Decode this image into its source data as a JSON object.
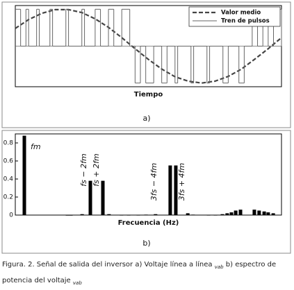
{
  "chart_data": [
    {
      "type": "line",
      "xlabel": "Tiempo",
      "xlim": [
        0,
        1
      ],
      "ylim": [
        -1.1,
        1.1
      ],
      "legend": "upper right",
      "series": [
        {
          "name": "Valor medio",
          "color": "#444444",
          "style": "dashed",
          "x": [
            0,
            0.05,
            0.1,
            0.15,
            0.2,
            0.25,
            0.3,
            0.35,
            0.4,
            0.45,
            0.5,
            0.55,
            0.6,
            0.65,
            0.7,
            0.75,
            0.8,
            0.85,
            0.9,
            0.95,
            1
          ],
          "values": [
            0.48,
            0.72,
            0.89,
            0.99,
            0.99,
            0.91,
            0.74,
            0.51,
            0.23,
            -0.07,
            -0.36,
            -0.62,
            -0.83,
            -0.95,
            -1.0,
            -0.95,
            -0.82,
            -0.62,
            -0.35,
            -0.07,
            0.23
          ]
        },
        {
          "name": "Tren de pulsos",
          "color": "#666666",
          "style": "step",
          "x": [
            0,
            0.02,
            0.04,
            0.05,
            0.08,
            0.09,
            0.13,
            0.14,
            0.19,
            0.2,
            0.25,
            0.26,
            0.3,
            0.32,
            0.35,
            0.37,
            0.4,
            0.43,
            0.45,
            0.47,
            0.49,
            0.52,
            0.55,
            0.57,
            0.6,
            0.61,
            0.66,
            0.67,
            0.72,
            0.73,
            0.78,
            0.8,
            0.84,
            0.86,
            0.89,
            0.91,
            0.93,
            0.95,
            0.97,
            1
          ],
          "values": [
            1,
            0,
            1,
            0,
            1,
            0,
            1,
            0,
            1,
            0,
            1,
            0,
            1,
            0,
            1,
            0,
            1,
            0,
            -1,
            0,
            -1,
            0,
            -1,
            0,
            -1,
            0,
            -1,
            0,
            -1,
            0,
            -1,
            0,
            -1,
            0,
            1,
            0,
            1,
            0,
            1,
            0
          ]
        }
      ]
    },
    {
      "type": "bar",
      "xlabel": "Frecuencia (Hz)",
      "xlim": [
        0,
        1
      ],
      "ylim": [
        0,
        0.9
      ],
      "yticks": [
        0,
        0.2,
        0.4,
        0.6,
        0.8
      ],
      "color": "#000000",
      "x": [
        0.034,
        0.196,
        0.209,
        0.251,
        0.282,
        0.329,
        0.352,
        0.399,
        0.426,
        0.462,
        0.491,
        0.527,
        0.582,
        0.603,
        0.648,
        0.668,
        0.726,
        0.752,
        0.778,
        0.796,
        0.812,
        0.828,
        0.846,
        0.898,
        0.916,
        0.935,
        0.95,
        0.969
      ],
      "values": [
        0.88,
        0.002,
        0.002,
        0.01,
        0.38,
        0.38,
        0.01,
        0.003,
        0.003,
        0.003,
        0.005,
        0.01,
        0.55,
        0.55,
        0.02,
        0.005,
        0.003,
        0.003,
        0.01,
        0.02,
        0.03,
        0.05,
        0.06,
        0.06,
        0.05,
        0.04,
        0.03,
        0.02
      ],
      "annotations": [
        "fm",
        "fs − 2fm",
        "fs + 2fm",
        "3fs − 4fm",
        "3fs + 4fm"
      ]
    }
  ],
  "panel_labels": [
    "a)",
    "b)"
  ],
  "caption": {
    "text_1": "Figura. 2. Señal de salida del inversor a) Voltaje línea a línea",
    "var_1": "vab",
    "text_2": "b) espectro de potencia del voltaje",
    "var_2": "vab"
  }
}
